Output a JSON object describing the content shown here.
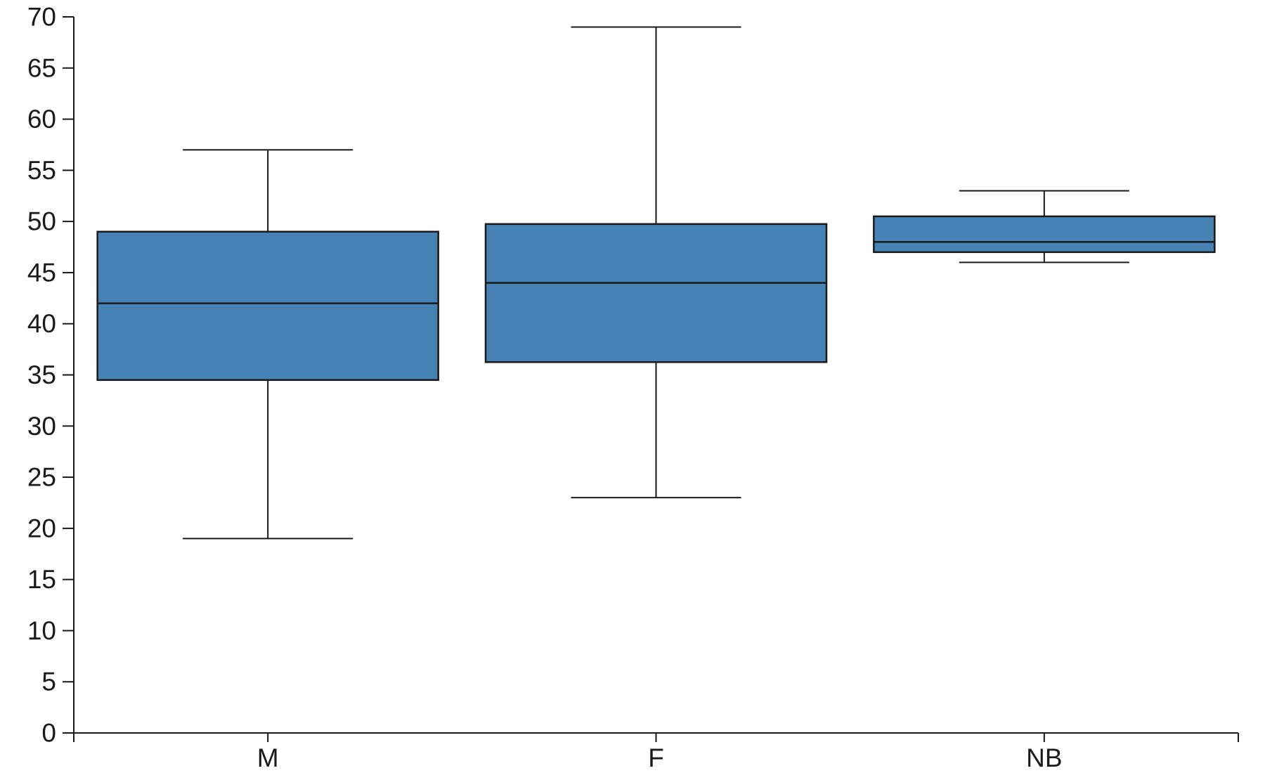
{
  "chart_data": {
    "type": "box",
    "title": "",
    "xlabel": "",
    "ylabel": "",
    "categories": [
      "M",
      "F",
      "NB"
    ],
    "series": [
      {
        "category": "M",
        "min": 19,
        "q1": 34.5,
        "median": 42,
        "q3": 49,
        "max": 57
      },
      {
        "category": "F",
        "min": 23,
        "q1": 36.25,
        "median": 44,
        "q3": 49.75,
        "max": 69
      },
      {
        "category": "NB",
        "min": 46,
        "q1": 47,
        "median": 48,
        "q3": 50.5,
        "max": 53
      }
    ],
    "ylim": [
      0,
      70
    ],
    "ytick_step": 5,
    "ytick_labels": [
      "0",
      "5",
      "10",
      "15",
      "20",
      "25",
      "30",
      "35",
      "40",
      "45",
      "50",
      "55",
      "60",
      "65",
      "70"
    ],
    "grid": false,
    "legend": false,
    "colors": {
      "box_fill": "#4682B4",
      "line": "#1a1a1a",
      "background": "#ffffff"
    }
  }
}
